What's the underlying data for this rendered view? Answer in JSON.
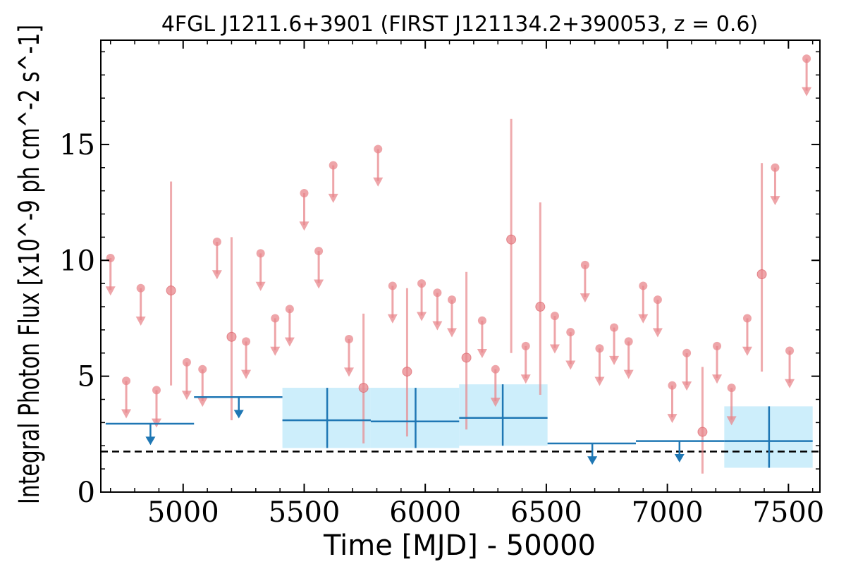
{
  "chart_data": {
    "type": "scatter",
    "title": "4FGL J1211.6+3901 (FIRST J121134.2+390053, z = 0.6)",
    "xlabel": "Time [MJD] - 50000",
    "ylabel": "Integral Photon Flux [x10^-9 ph cm^-2 s^-1]",
    "xlim": [
      4660,
      7630
    ],
    "ylim": [
      0,
      19.5
    ],
    "x_ticks": [
      5000,
      5500,
      6000,
      6500,
      7000,
      7500
    ],
    "y_ticks": [
      0,
      5,
      10,
      15
    ],
    "baseline": 1.75,
    "colors": {
      "fine_bins": "#e8878c",
      "coarse_bins": "#1f77b4",
      "coarse_band": "#cdeefb",
      "baseline": "#000000"
    },
    "fine_bins": {
      "detections": [
        {
          "x": 4950,
          "y": 8.7,
          "ylo": 4.6,
          "yhi": 13.4
        },
        {
          "x": 5200,
          "y": 6.7,
          "ylo": 3.1,
          "yhi": 11.0
        },
        {
          "x": 5745,
          "y": 4.5,
          "ylo": 2.1,
          "yhi": 7.7
        },
        {
          "x": 5925,
          "y": 5.2,
          "ylo": 2.4,
          "yhi": 8.8
        },
        {
          "x": 6170,
          "y": 5.8,
          "ylo": 2.7,
          "yhi": 9.5
        },
        {
          "x": 6355,
          "y": 10.9,
          "ylo": 6.0,
          "yhi": 16.1
        },
        {
          "x": 6475,
          "y": 8.0,
          "ylo": 4.2,
          "yhi": 12.5
        },
        {
          "x": 7145,
          "y": 2.6,
          "ylo": 0.8,
          "yhi": 5.4
        },
        {
          "x": 7390,
          "y": 9.4,
          "ylo": 5.2,
          "yhi": 14.2
        }
      ],
      "upper_limits": [
        {
          "x": 4700,
          "y": 10.1
        },
        {
          "x": 4765,
          "y": 4.8
        },
        {
          "x": 4825,
          "y": 8.8
        },
        {
          "x": 4890,
          "y": 4.4
        },
        {
          "x": 5015,
          "y": 5.6
        },
        {
          "x": 5080,
          "y": 5.3
        },
        {
          "x": 5140,
          "y": 10.8
        },
        {
          "x": 5260,
          "y": 6.5
        },
        {
          "x": 5320,
          "y": 10.3
        },
        {
          "x": 5380,
          "y": 7.5
        },
        {
          "x": 5440,
          "y": 7.9
        },
        {
          "x": 5500,
          "y": 12.9
        },
        {
          "x": 5560,
          "y": 10.4
        },
        {
          "x": 5620,
          "y": 14.1
        },
        {
          "x": 5685,
          "y": 6.6
        },
        {
          "x": 5805,
          "y": 14.8
        },
        {
          "x": 5865,
          "y": 8.9
        },
        {
          "x": 5985,
          "y": 9.0
        },
        {
          "x": 6050,
          "y": 8.6
        },
        {
          "x": 6110,
          "y": 8.3
        },
        {
          "x": 6290,
          "y": 5.3
        },
        {
          "x": 6235,
          "y": 7.4
        },
        {
          "x": 6415,
          "y": 6.3
        },
        {
          "x": 6535,
          "y": 7.6
        },
        {
          "x": 6600,
          "y": 6.9
        },
        {
          "x": 6660,
          "y": 9.8
        },
        {
          "x": 6720,
          "y": 6.2
        },
        {
          "x": 6780,
          "y": 7.1
        },
        {
          "x": 6840,
          "y": 6.5
        },
        {
          "x": 6900,
          "y": 8.9
        },
        {
          "x": 6960,
          "y": 8.3
        },
        {
          "x": 7020,
          "y": 4.6
        },
        {
          "x": 7080,
          "y": 6.0
        },
        {
          "x": 7205,
          "y": 6.3
        },
        {
          "x": 7265,
          "y": 4.5
        },
        {
          "x": 7330,
          "y": 7.5
        },
        {
          "x": 7445,
          "y": 14.0
        },
        {
          "x": 7505,
          "y": 6.1
        },
        {
          "x": 7575,
          "y": 18.7
        }
      ]
    },
    "coarse_bins": {
      "detections": [
        {
          "x0": 5410,
          "x1": 5775,
          "x": 5595,
          "y": 3.1,
          "ylo": 1.9,
          "yhi": 4.5
        },
        {
          "x0": 5775,
          "x1": 6140,
          "x": 5960,
          "y": 3.05,
          "ylo": 1.9,
          "yhi": 4.5
        },
        {
          "x0": 6140,
          "x1": 6505,
          "x": 6320,
          "y": 3.2,
          "ylo": 2.0,
          "yhi": 4.65
        },
        {
          "x0": 7235,
          "x1": 7600,
          "x": 7420,
          "y": 2.2,
          "ylo": 1.05,
          "yhi": 3.7
        }
      ],
      "upper_limits": [
        {
          "x0": 4680,
          "x1": 5045,
          "x": 4865,
          "y": 2.95
        },
        {
          "x0": 5045,
          "x1": 5410,
          "x": 5230,
          "y": 4.1
        },
        {
          "x0": 6505,
          "x1": 6870,
          "x": 6690,
          "y": 2.1
        },
        {
          "x0": 6870,
          "x1": 7235,
          "x": 7050,
          "y": 2.2
        }
      ]
    }
  }
}
